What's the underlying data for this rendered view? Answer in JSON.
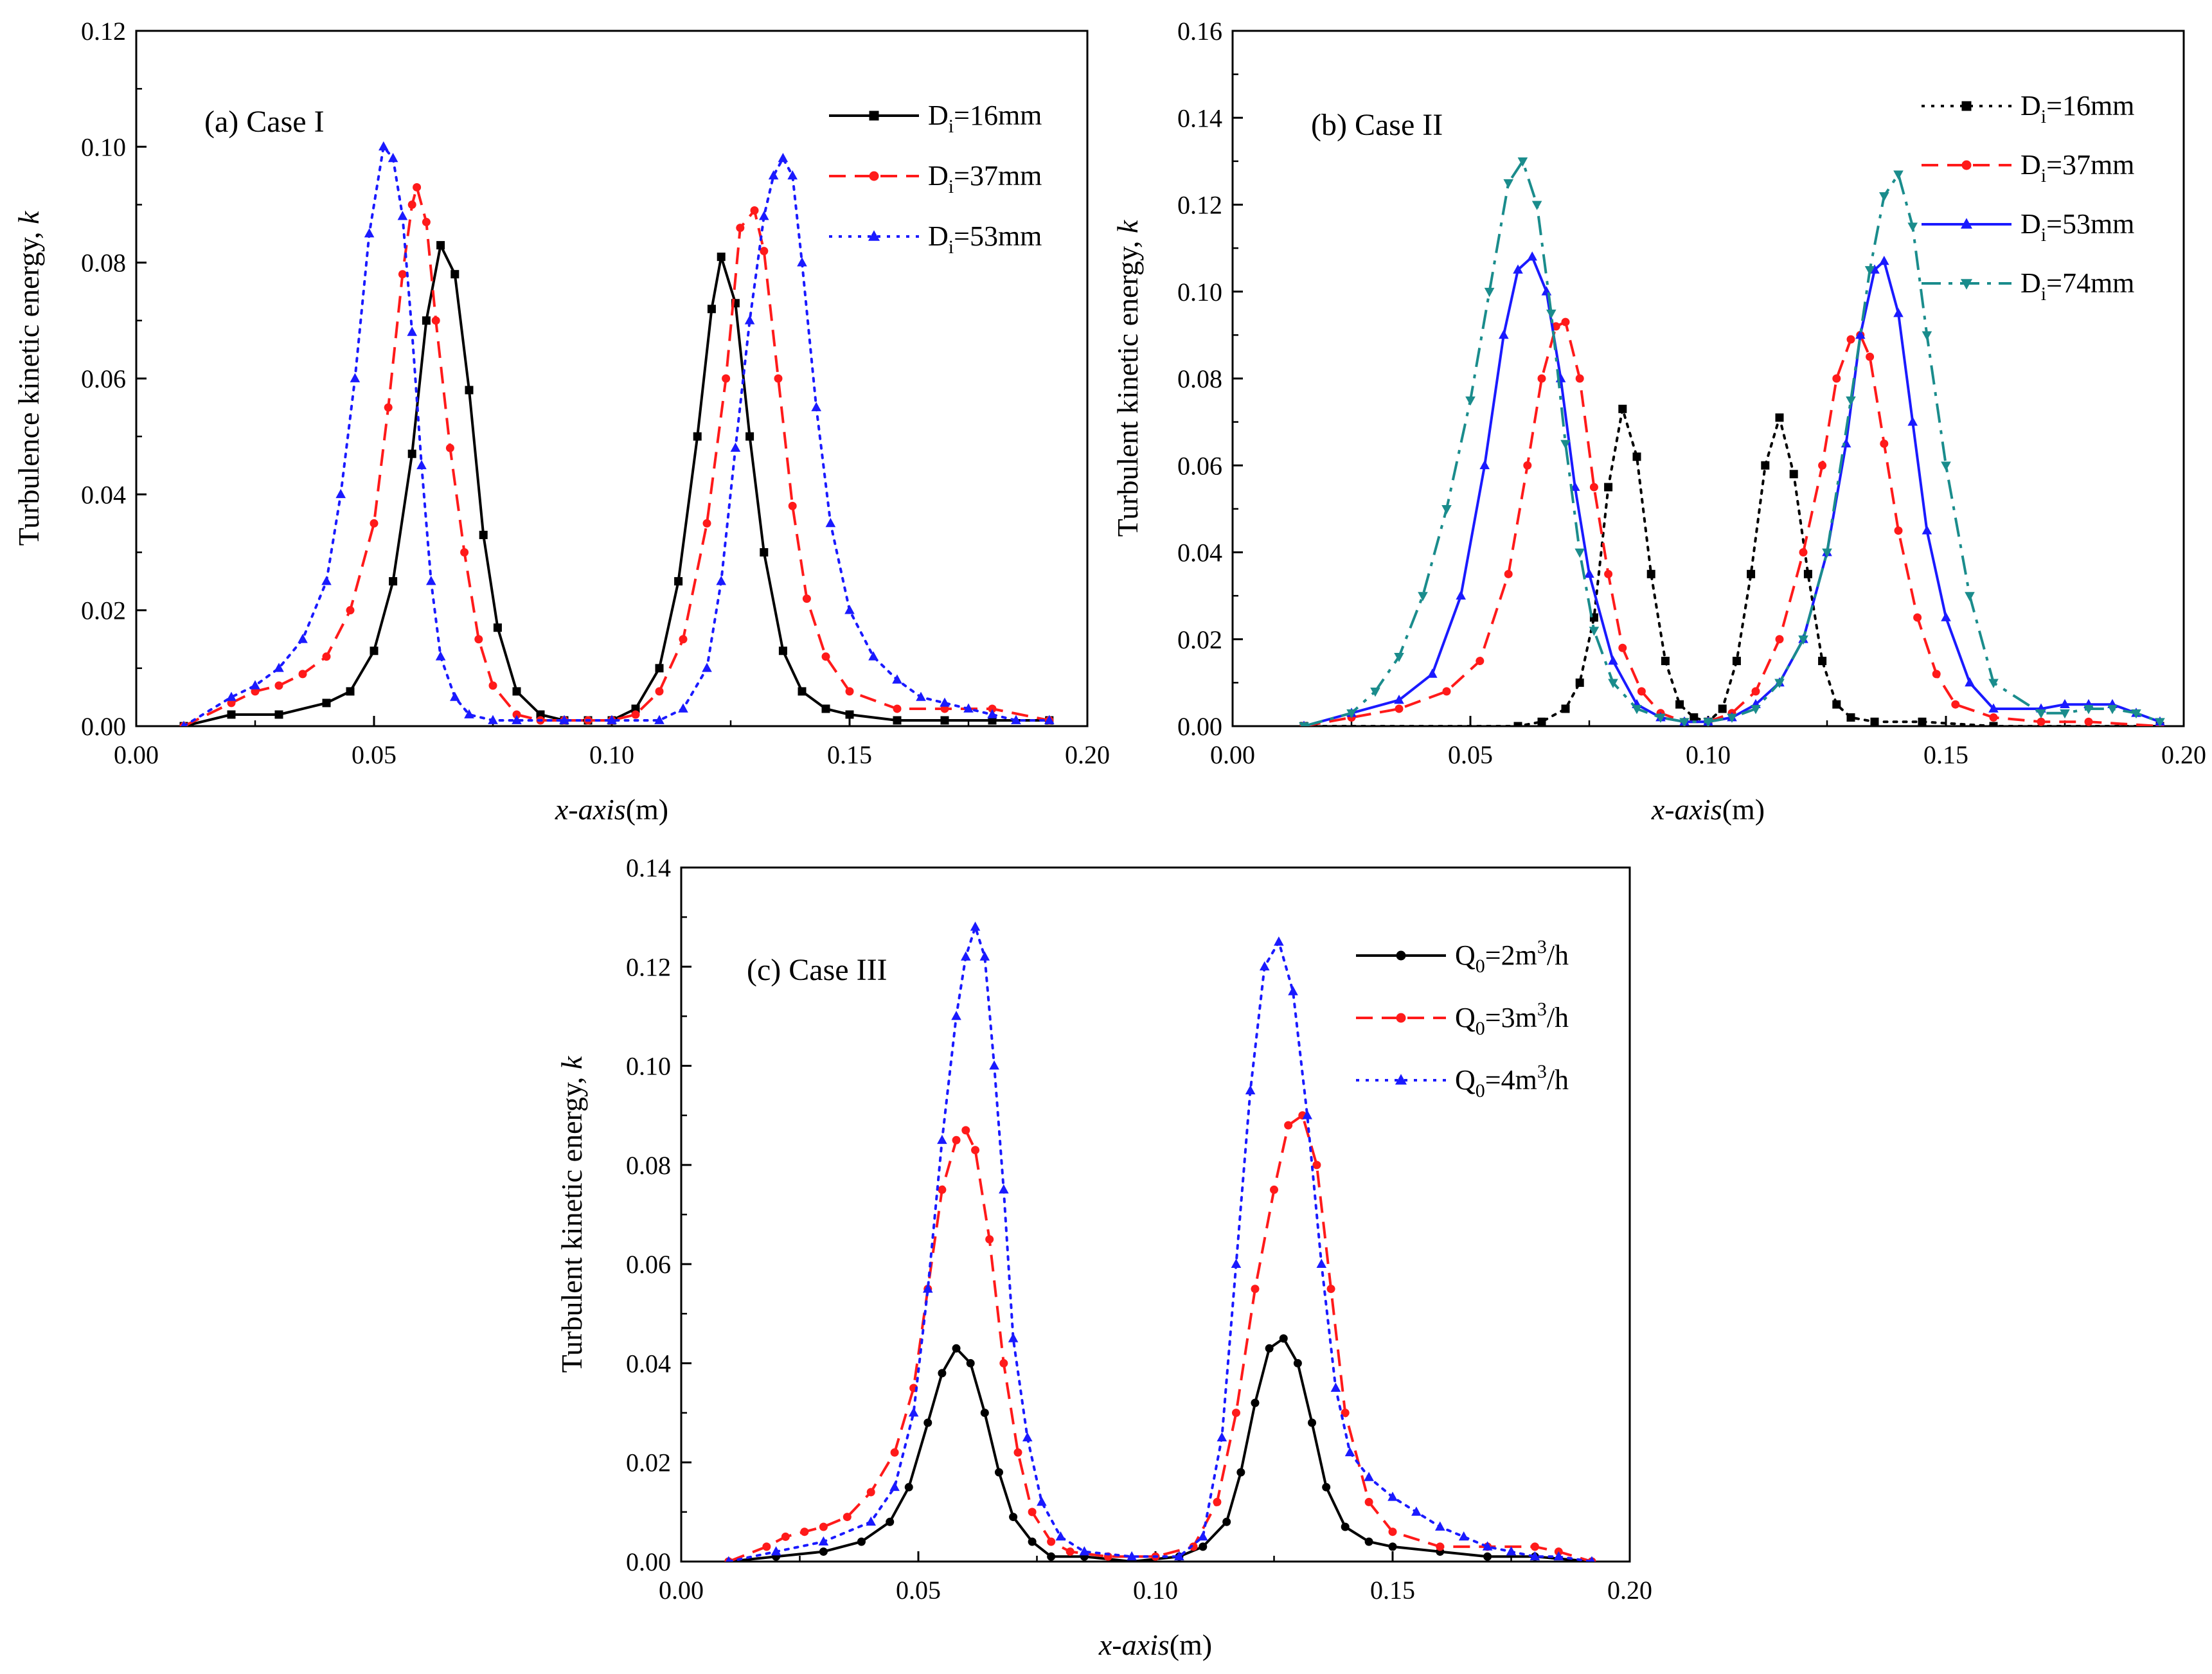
{
  "figure_title": "",
  "chart_data": [
    {
      "type": "line",
      "panel": "a",
      "title": "(a) Case I",
      "xlabel_italic": "x-axis",
      "xlabel_unit": "(m)",
      "ylabel_text": "Turbulence kinetic energy, ",
      "ylabel_symbol": "k",
      "xlim": [
        0.0,
        0.2
      ],
      "ylim": [
        0.0,
        0.12
      ],
      "x_ticks": [
        "0.00",
        "0.05",
        "0.10",
        "0.15",
        "0.20"
      ],
      "y_ticks": [
        "0.00",
        "0.02",
        "0.04",
        "0.06",
        "0.08",
        "0.10",
        "0.12"
      ],
      "legend_position": "top-right",
      "series": [
        {
          "label_base": "D",
          "label_sub": "i",
          "label_rest": "=16mm",
          "color": "#000000",
          "dash": "solid",
          "marker": "square",
          "x": [
            0.01,
            0.02,
            0.03,
            0.04,
            0.045,
            0.05,
            0.054,
            0.058,
            0.061,
            0.064,
            0.067,
            0.07,
            0.073,
            0.076,
            0.08,
            0.085,
            0.09,
            0.095,
            0.1,
            0.105,
            0.11,
            0.114,
            0.118,
            0.121,
            0.123,
            0.126,
            0.129,
            0.132,
            0.136,
            0.14,
            0.145,
            0.15,
            0.16,
            0.17,
            0.18,
            0.192
          ],
          "y": [
            0.0,
            0.002,
            0.002,
            0.004,
            0.006,
            0.013,
            0.025,
            0.047,
            0.07,
            0.083,
            0.078,
            0.058,
            0.033,
            0.017,
            0.006,
            0.002,
            0.001,
            0.001,
            0.001,
            0.003,
            0.01,
            0.025,
            0.05,
            0.072,
            0.081,
            0.073,
            0.05,
            0.03,
            0.013,
            0.006,
            0.003,
            0.002,
            0.001,
            0.001,
            0.001,
            0.001
          ]
        },
        {
          "label_base": "D",
          "label_sub": "i",
          "label_rest": "=37mm",
          "color": "#ff1a1a",
          "dash": "dashed",
          "marker": "circle",
          "x": [
            0.01,
            0.02,
            0.025,
            0.03,
            0.035,
            0.04,
            0.045,
            0.05,
            0.053,
            0.056,
            0.058,
            0.059,
            0.061,
            0.063,
            0.066,
            0.069,
            0.072,
            0.075,
            0.08,
            0.085,
            0.09,
            0.095,
            0.1,
            0.105,
            0.11,
            0.115,
            0.12,
            0.124,
            0.127,
            0.13,
            0.132,
            0.135,
            0.138,
            0.141,
            0.145,
            0.15,
            0.16,
            0.17,
            0.18,
            0.192
          ],
          "y": [
            0.0,
            0.004,
            0.006,
            0.007,
            0.009,
            0.012,
            0.02,
            0.035,
            0.055,
            0.078,
            0.09,
            0.093,
            0.087,
            0.07,
            0.048,
            0.03,
            0.015,
            0.007,
            0.002,
            0.001,
            0.001,
            0.001,
            0.001,
            0.002,
            0.006,
            0.015,
            0.035,
            0.06,
            0.086,
            0.089,
            0.082,
            0.06,
            0.038,
            0.022,
            0.012,
            0.006,
            0.003,
            0.003,
            0.003,
            0.001
          ]
        },
        {
          "label_base": "D",
          "label_sub": "i",
          "label_rest": "=53mm",
          "color": "#1a1aff",
          "dash": "dotted",
          "marker": "triangle",
          "x": [
            0.01,
            0.02,
            0.025,
            0.03,
            0.035,
            0.04,
            0.043,
            0.046,
            0.049,
            0.052,
            0.054,
            0.056,
            0.058,
            0.06,
            0.062,
            0.064,
            0.067,
            0.07,
            0.075,
            0.08,
            0.09,
            0.1,
            0.11,
            0.115,
            0.12,
            0.123,
            0.126,
            0.129,
            0.132,
            0.134,
            0.136,
            0.138,
            0.14,
            0.143,
            0.146,
            0.15,
            0.155,
            0.16,
            0.165,
            0.17,
            0.175,
            0.18,
            0.185,
            0.192
          ],
          "y": [
            0.0,
            0.005,
            0.007,
            0.01,
            0.015,
            0.025,
            0.04,
            0.06,
            0.085,
            0.1,
            0.098,
            0.088,
            0.068,
            0.045,
            0.025,
            0.012,
            0.005,
            0.002,
            0.001,
            0.001,
            0.001,
            0.001,
            0.001,
            0.003,
            0.01,
            0.025,
            0.048,
            0.07,
            0.088,
            0.095,
            0.098,
            0.095,
            0.08,
            0.055,
            0.035,
            0.02,
            0.012,
            0.008,
            0.005,
            0.004,
            0.003,
            0.002,
            0.001,
            0.001
          ]
        }
      ]
    },
    {
      "type": "line",
      "panel": "b",
      "title": "(b) Case II",
      "xlabel_italic": "x-axis",
      "xlabel_unit": "(m)",
      "ylabel_text": "Turbulent kinetic energy, ",
      "ylabel_symbol": "k",
      "xlim": [
        0.0,
        0.2
      ],
      "ylim": [
        0.0,
        0.16
      ],
      "x_ticks": [
        "0.00",
        "0.05",
        "0.10",
        "0.15",
        "0.20"
      ],
      "y_ticks": [
        "0.00",
        "0.02",
        "0.04",
        "0.06",
        "0.08",
        "0.10",
        "0.12",
        "0.14",
        "0.16"
      ],
      "legend_position": "top-right",
      "series": [
        {
          "label_base": "D",
          "label_sub": "i",
          "label_rest": "=16mm",
          "color": "#000000",
          "dash": "shortdot",
          "marker": "square",
          "x": [
            0.015,
            0.06,
            0.065,
            0.07,
            0.073,
            0.076,
            0.079,
            0.082,
            0.085,
            0.088,
            0.091,
            0.094,
            0.097,
            0.1,
            0.103,
            0.106,
            0.109,
            0.112,
            0.115,
            0.118,
            0.121,
            0.124,
            0.127,
            0.13,
            0.135,
            0.145,
            0.16,
            0.195
          ],
          "y": [
            0.0,
            0.0,
            0.001,
            0.004,
            0.01,
            0.025,
            0.055,
            0.073,
            0.062,
            0.035,
            0.015,
            0.005,
            0.002,
            0.001,
            0.004,
            0.015,
            0.035,
            0.06,
            0.071,
            0.058,
            0.035,
            0.015,
            0.005,
            0.002,
            0.001,
            0.001,
            0.0,
            0.0
          ]
        },
        {
          "label_base": "D",
          "label_sub": "i",
          "label_rest": "=37mm",
          "color": "#ff1a1a",
          "dash": "dashed",
          "marker": "circle",
          "x": [
            0.015,
            0.025,
            0.035,
            0.045,
            0.052,
            0.058,
            0.062,
            0.065,
            0.068,
            0.07,
            0.073,
            0.076,
            0.079,
            0.082,
            0.086,
            0.09,
            0.095,
            0.1,
            0.105,
            0.11,
            0.115,
            0.12,
            0.124,
            0.127,
            0.13,
            0.132,
            0.134,
            0.137,
            0.14,
            0.144,
            0.148,
            0.152,
            0.16,
            0.17,
            0.18,
            0.195
          ],
          "y": [
            0.0,
            0.002,
            0.004,
            0.008,
            0.015,
            0.035,
            0.06,
            0.08,
            0.092,
            0.093,
            0.08,
            0.055,
            0.035,
            0.018,
            0.008,
            0.003,
            0.001,
            0.001,
            0.003,
            0.008,
            0.02,
            0.04,
            0.06,
            0.08,
            0.089,
            0.09,
            0.085,
            0.065,
            0.045,
            0.025,
            0.012,
            0.005,
            0.002,
            0.001,
            0.001,
            0.0
          ]
        },
        {
          "label_base": "D",
          "label_sub": "i",
          "label_rest": "=53mm",
          "color": "#1a1aff",
          "dash": "solid",
          "marker": "triangle",
          "x": [
            0.015,
            0.025,
            0.035,
            0.042,
            0.048,
            0.053,
            0.057,
            0.06,
            0.063,
            0.066,
            0.069,
            0.072,
            0.075,
            0.08,
            0.085,
            0.09,
            0.095,
            0.1,
            0.105,
            0.11,
            0.115,
            0.12,
            0.125,
            0.129,
            0.132,
            0.135,
            0.137,
            0.14,
            0.143,
            0.146,
            0.15,
            0.155,
            0.16,
            0.17,
            0.175,
            0.18,
            0.185,
            0.19,
            0.195
          ],
          "y": [
            0.0,
            0.003,
            0.006,
            0.012,
            0.03,
            0.06,
            0.09,
            0.105,
            0.108,
            0.1,
            0.08,
            0.055,
            0.035,
            0.015,
            0.005,
            0.002,
            0.001,
            0.001,
            0.002,
            0.005,
            0.01,
            0.02,
            0.04,
            0.065,
            0.09,
            0.105,
            0.107,
            0.095,
            0.07,
            0.045,
            0.025,
            0.01,
            0.004,
            0.004,
            0.005,
            0.005,
            0.005,
            0.003,
            0.001
          ]
        },
        {
          "label_base": "D",
          "label_sub": "i",
          "label_rest": "=74mm",
          "color": "#1a8c8c",
          "dash": "dashdot",
          "marker": "invtriangle",
          "x": [
            0.015,
            0.025,
            0.03,
            0.035,
            0.04,
            0.045,
            0.05,
            0.054,
            0.058,
            0.061,
            0.064,
            0.067,
            0.07,
            0.073,
            0.076,
            0.08,
            0.085,
            0.09,
            0.095,
            0.1,
            0.105,
            0.11,
            0.115,
            0.12,
            0.125,
            0.13,
            0.134,
            0.137,
            0.14,
            0.143,
            0.146,
            0.15,
            0.155,
            0.16,
            0.17,
            0.175,
            0.18,
            0.185,
            0.19,
            0.195
          ],
          "y": [
            0.0,
            0.003,
            0.008,
            0.016,
            0.03,
            0.05,
            0.075,
            0.1,
            0.125,
            0.13,
            0.12,
            0.095,
            0.065,
            0.04,
            0.022,
            0.01,
            0.004,
            0.002,
            0.001,
            0.001,
            0.002,
            0.004,
            0.01,
            0.02,
            0.04,
            0.075,
            0.105,
            0.122,
            0.127,
            0.115,
            0.09,
            0.06,
            0.03,
            0.01,
            0.003,
            0.003,
            0.004,
            0.004,
            0.003,
            0.001
          ]
        }
      ]
    },
    {
      "type": "line",
      "panel": "c",
      "title": "(c) Case III",
      "xlabel_italic": "x-axis",
      "xlabel_unit": "(m)",
      "ylabel_text": "Turbulent kinetic energy, ",
      "ylabel_symbol": "k",
      "xlim": [
        0.0,
        0.2
      ],
      "ylim": [
        0.0,
        0.14
      ],
      "x_ticks": [
        "0.00",
        "0.05",
        "0.10",
        "0.15",
        "0.20"
      ],
      "y_ticks": [
        "0.00",
        "0.02",
        "0.04",
        "0.06",
        "0.08",
        "0.10",
        "0.12",
        "0.14"
      ],
      "legend_position": "top-right",
      "series": [
        {
          "label_base": "Q",
          "label_sub": "0",
          "label_mid": "=2m",
          "label_sup": "3",
          "label_rest": "/h",
          "color": "#000000",
          "dash": "solid",
          "marker": "circle",
          "x": [
            0.01,
            0.02,
            0.03,
            0.038,
            0.044,
            0.048,
            0.052,
            0.055,
            0.058,
            0.061,
            0.064,
            0.067,
            0.07,
            0.074,
            0.078,
            0.085,
            0.095,
            0.105,
            0.11,
            0.115,
            0.118,
            0.121,
            0.124,
            0.127,
            0.13,
            0.133,
            0.136,
            0.14,
            0.145,
            0.15,
            0.16,
            0.17,
            0.18,
            0.192
          ],
          "y": [
            0.0,
            0.001,
            0.002,
            0.004,
            0.008,
            0.015,
            0.028,
            0.038,
            0.043,
            0.04,
            0.03,
            0.018,
            0.009,
            0.004,
            0.001,
            0.001,
            0.0,
            0.001,
            0.003,
            0.008,
            0.018,
            0.032,
            0.043,
            0.045,
            0.04,
            0.028,
            0.015,
            0.007,
            0.004,
            0.003,
            0.002,
            0.001,
            0.001,
            0.0
          ]
        },
        {
          "label_base": "Q",
          "label_sub": "0",
          "label_mid": "=3m",
          "label_sup": "3",
          "label_rest": "/h",
          "color": "#ff1a1a",
          "dash": "dashed",
          "marker": "circle",
          "x": [
            0.01,
            0.018,
            0.022,
            0.026,
            0.03,
            0.035,
            0.04,
            0.045,
            0.049,
            0.052,
            0.055,
            0.058,
            0.06,
            0.062,
            0.065,
            0.068,
            0.071,
            0.074,
            0.078,
            0.082,
            0.09,
            0.1,
            0.108,
            0.113,
            0.117,
            0.121,
            0.125,
            0.128,
            0.131,
            0.134,
            0.137,
            0.14,
            0.145,
            0.15,
            0.16,
            0.17,
            0.18,
            0.185,
            0.192
          ],
          "y": [
            0.0,
            0.003,
            0.005,
            0.006,
            0.007,
            0.009,
            0.014,
            0.022,
            0.035,
            0.055,
            0.075,
            0.085,
            0.087,
            0.083,
            0.065,
            0.04,
            0.022,
            0.01,
            0.004,
            0.002,
            0.001,
            0.001,
            0.003,
            0.012,
            0.03,
            0.055,
            0.075,
            0.088,
            0.09,
            0.08,
            0.055,
            0.03,
            0.012,
            0.006,
            0.003,
            0.003,
            0.003,
            0.002,
            0.0
          ]
        },
        {
          "label_base": "Q",
          "label_sub": "0",
          "label_mid": "=4m",
          "label_sup": "3",
          "label_rest": "/h",
          "color": "#1a1aff",
          "dash": "dotted",
          "marker": "triangle",
          "x": [
            0.01,
            0.02,
            0.03,
            0.04,
            0.045,
            0.049,
            0.052,
            0.055,
            0.058,
            0.06,
            0.062,
            0.064,
            0.066,
            0.068,
            0.07,
            0.073,
            0.076,
            0.08,
            0.085,
            0.095,
            0.105,
            0.11,
            0.114,
            0.117,
            0.12,
            0.123,
            0.126,
            0.129,
            0.132,
            0.135,
            0.138,
            0.141,
            0.145,
            0.15,
            0.155,
            0.16,
            0.165,
            0.17,
            0.175,
            0.18,
            0.185,
            0.192
          ],
          "y": [
            0.0,
            0.002,
            0.004,
            0.008,
            0.015,
            0.03,
            0.055,
            0.085,
            0.11,
            0.122,
            0.128,
            0.122,
            0.1,
            0.075,
            0.045,
            0.025,
            0.012,
            0.005,
            0.002,
            0.001,
            0.001,
            0.005,
            0.025,
            0.06,
            0.095,
            0.12,
            0.125,
            0.115,
            0.09,
            0.06,
            0.035,
            0.022,
            0.017,
            0.013,
            0.01,
            0.007,
            0.005,
            0.003,
            0.002,
            0.001,
            0.001,
            0.0
          ]
        }
      ]
    }
  ]
}
